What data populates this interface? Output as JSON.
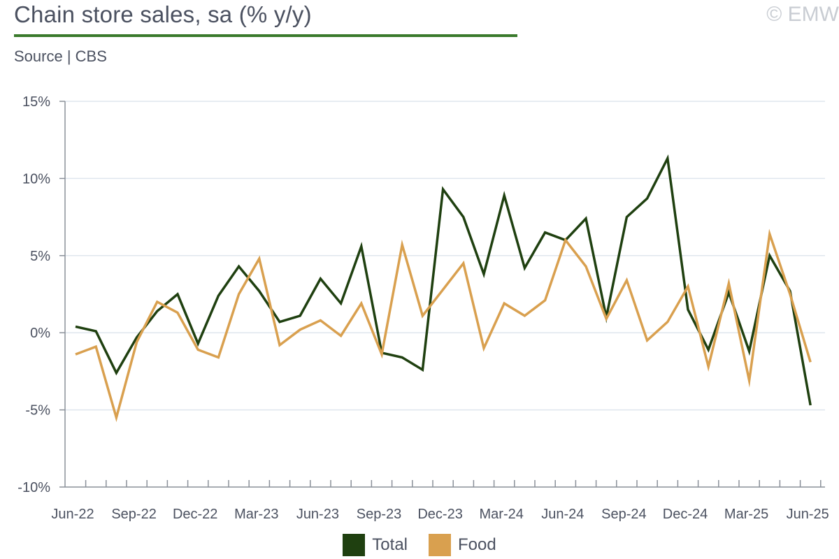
{
  "header": {
    "title": "Chain store sales, sa (% y/y)",
    "copyright": "© EMW",
    "source": "Source | CBS"
  },
  "colors": {
    "accent": "#3a7a2c",
    "total": "#1f4010",
    "food": "#d9a04f",
    "grid": "#dfe6ee",
    "axis": "#8a9099"
  },
  "chart_data": {
    "type": "line",
    "x": [
      "Jun-22",
      "Jul-22",
      "Aug-22",
      "Sep-22",
      "Oct-22",
      "Nov-22",
      "Dec-22",
      "Jan-23",
      "Feb-23",
      "Mar-23",
      "Apr-23",
      "May-23",
      "Jun-23",
      "Jul-23",
      "Aug-23",
      "Sep-23",
      "Oct-23",
      "Nov-23",
      "Dec-23",
      "Jan-24",
      "Feb-24",
      "Mar-24",
      "Apr-24",
      "May-24",
      "Jun-24",
      "Jul-24",
      "Aug-24",
      "Sep-24",
      "Oct-24",
      "Nov-24",
      "Dec-24",
      "Jan-25",
      "Feb-25",
      "Mar-25",
      "Apr-25",
      "May-25",
      "Jun-25"
    ],
    "x_tick_labels": [
      "Jun-22",
      "Sep-22",
      "Dec-22",
      "Mar-23",
      "Jun-23",
      "Sep-23",
      "Dec-23",
      "Mar-24",
      "Jun-24",
      "Sep-24",
      "Dec-24",
      "Mar-25",
      "Jun-25"
    ],
    "y_tick_labels": [
      "15%",
      "10%",
      "5%",
      "0%",
      "-5%",
      "-10%"
    ],
    "y_ticks": [
      15,
      10,
      5,
      0,
      -5,
      -10
    ],
    "ylim": [
      -10,
      15
    ],
    "grid": true,
    "legend_position": "bottom",
    "series": [
      {
        "name": "Total",
        "values": [
          0.4,
          0.1,
          -2.6,
          -0.3,
          1.4,
          2.5,
          -0.7,
          2.4,
          4.3,
          2.7,
          0.7,
          1.1,
          3.5,
          1.9,
          5.6,
          -1.3,
          -1.6,
          -2.4,
          9.3,
          7.5,
          3.8,
          8.9,
          4.2,
          6.5,
          6.0,
          7.4,
          1.0,
          7.5,
          8.7,
          11.3,
          1.5,
          -1.1,
          2.6,
          -1.2,
          5.0,
          2.7,
          -4.7
        ],
        "color": "#1f4010"
      },
      {
        "name": "Food",
        "values": [
          -1.4,
          -0.9,
          -5.5,
          -0.6,
          2.0,
          1.3,
          -1.1,
          -1.6,
          2.5,
          4.8,
          -0.8,
          0.2,
          0.8,
          -0.2,
          1.9,
          -1.4,
          5.7,
          1.1,
          2.8,
          4.5,
          -1.0,
          1.9,
          1.1,
          2.1,
          6.0,
          4.3,
          0.9,
          3.4,
          -0.5,
          0.7,
          3.0,
          -2.2,
          3.2,
          -3.1,
          6.4,
          2.5,
          -1.9
        ],
        "color": "#d9a04f"
      }
    ]
  }
}
